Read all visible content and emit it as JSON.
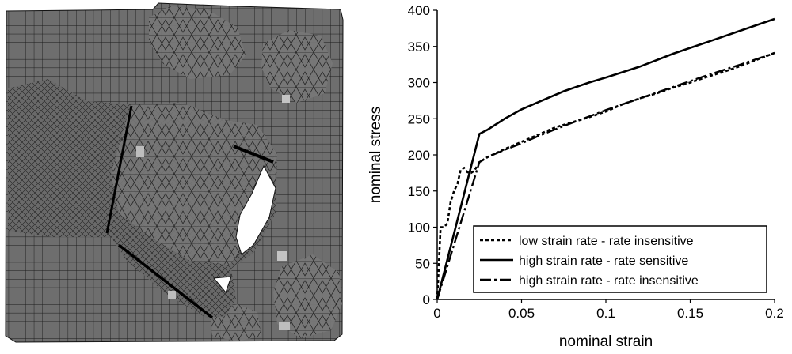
{
  "mesh_figure": {
    "icon": "deformed-mesh-image"
  },
  "chart_data": {
    "type": "line",
    "xlabel": "nominal strain",
    "ylabel": "nominal stress",
    "xlim": [
      0,
      0.2
    ],
    "ylim": [
      0,
      400
    ],
    "x_ticks": [
      "0",
      "0.05",
      "0.1",
      "0.15",
      "0.2"
    ],
    "y_ticks": [
      "0",
      "50",
      "100",
      "150",
      "200",
      "250",
      "300",
      "350",
      "400"
    ],
    "grid": false,
    "legend_position": "bottom-right",
    "series": [
      {
        "name": "low strain rate - rate insensitive",
        "dash": "dashed",
        "x": [
          0,
          0.002,
          0.004,
          0.006,
          0.008,
          0.01,
          0.012,
          0.014,
          0.016,
          0.018,
          0.02,
          0.022,
          0.025,
          0.03,
          0.04,
          0.05,
          0.06,
          0.07,
          0.08,
          0.09,
          0.1,
          0.11,
          0.12,
          0.13,
          0.14,
          0.15,
          0.16,
          0.17,
          0.18,
          0.19,
          0.2
        ],
        "y": [
          0,
          100,
          100,
          105,
          135,
          150,
          160,
          180,
          182,
          176,
          175,
          178,
          190,
          197,
          208,
          218,
          228,
          238,
          245,
          252,
          260,
          270,
          278,
          285,
          293,
          300,
          308,
          315,
          323,
          332,
          341
        ]
      },
      {
        "name": "high strain rate - rate sensitive",
        "dash": "solid",
        "x": [
          0,
          0.025,
          0.03,
          0.04,
          0.05,
          0.06,
          0.075,
          0.09,
          0.1,
          0.12,
          0.14,
          0.16,
          0.18,
          0.2
        ],
        "y": [
          0,
          229,
          235,
          250,
          263,
          273,
          288,
          300,
          307,
          322,
          340,
          356,
          372,
          388
        ]
      },
      {
        "name": "high strain rate - rate insensitive",
        "dash": "dashdot",
        "x": [
          0,
          0.025,
          0.03,
          0.04,
          0.05,
          0.06,
          0.075,
          0.09,
          0.1,
          0.12,
          0.14,
          0.16,
          0.18,
          0.2
        ],
        "y": [
          0,
          190,
          197,
          207,
          216,
          226,
          240,
          253,
          262,
          278,
          294,
          310,
          325,
          341
        ]
      }
    ]
  }
}
